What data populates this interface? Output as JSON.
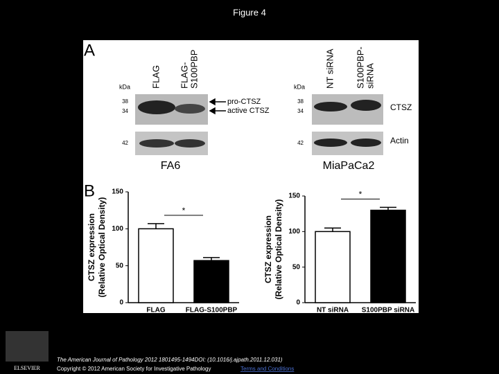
{
  "header": {
    "title": "Figure 4"
  },
  "panel_a": {
    "label": "A",
    "kda_left": "kDa",
    "kda_right": "kDa",
    "left_lanes": [
      [
        "FLAG"
      ],
      [
        "FLAG-",
        "S100PBP"
      ]
    ],
    "right_lanes": [
      [
        "NT siRNA"
      ],
      [
        "S100PBP-",
        "siRNA"
      ]
    ],
    "left_markers": [
      "38",
      "34",
      "42"
    ],
    "right_markers": [
      "38",
      "34",
      "42"
    ],
    "arrows": [
      "pro-CTSZ",
      "active CTSZ"
    ],
    "right_rows": [
      "CTSZ",
      "Actin"
    ],
    "left_cell": "FA6",
    "right_cell": "MiaPaCa2"
  },
  "panel_b": {
    "label": "B"
  },
  "chart_data": [
    {
      "type": "bar",
      "ylabel": [
        "CTSZ expression",
        "(Relative Optical Density)"
      ],
      "categories": [
        "FLAG",
        "FLAG-S100PBP"
      ],
      "values": [
        100,
        57
      ],
      "errors": [
        7,
        4
      ],
      "colors": [
        "#ffffff",
        "#000000"
      ],
      "annotation": "*",
      "ylim": [
        0,
        150
      ],
      "yticks": [
        0,
        50,
        100,
        150
      ]
    },
    {
      "type": "bar",
      "ylabel": [
        "CTSZ expression",
        "(Relative Optical Density)"
      ],
      "categories": [
        "NT siRNA",
        "S100PBP siRNA"
      ],
      "values": [
        100,
        130
      ],
      "errors": [
        5,
        4
      ],
      "colors": [
        "#ffffff",
        "#000000"
      ],
      "annotation": "*",
      "ylim": [
        0,
        150
      ],
      "yticks": [
        0,
        50,
        100,
        150
      ]
    }
  ],
  "footer": {
    "citation": "The American Journal of Pathology 2012 1801495-1494DOI: (10.1016/j.ajpath.2011.12.031)",
    "copyright": "Copyright © 2012 American Society for Investigative Pathology",
    "link": "Terms and Conditions",
    "logo": "ELSEVIER"
  }
}
